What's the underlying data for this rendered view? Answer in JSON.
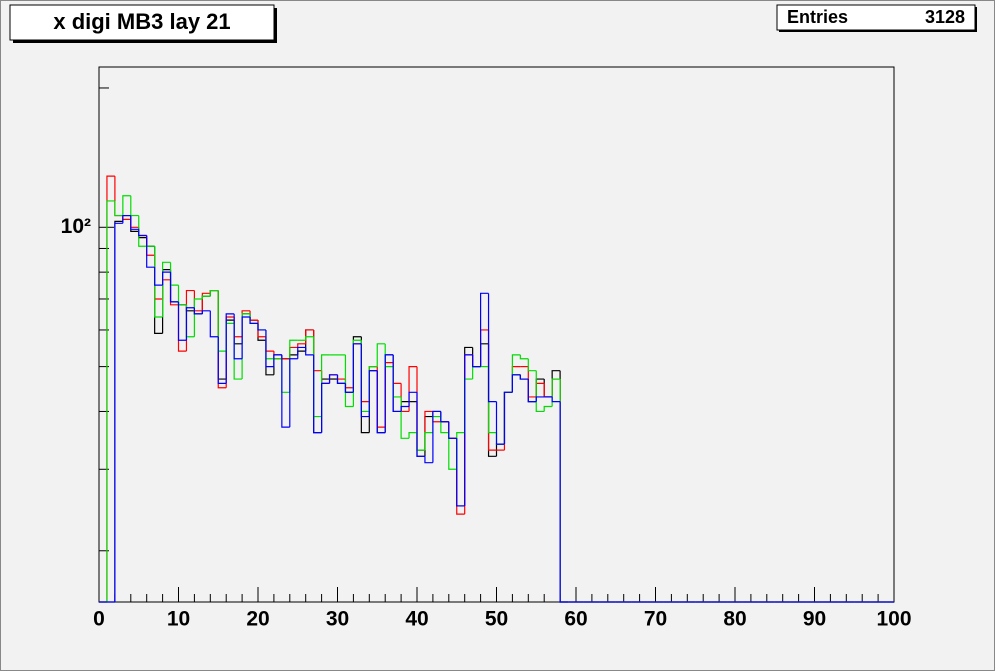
{
  "chart_data": {
    "type": "histogram",
    "title": "x digi MB3 lay 21",
    "stats": {
      "label": "Entries",
      "value": "3128"
    },
    "log_y": true,
    "xlim": [
      0,
      100
    ],
    "xticks": [
      0,
      10,
      20,
      30,
      40,
      50,
      60,
      70,
      80,
      90,
      100
    ],
    "x_subdivisions": 5,
    "ylim": [
      15.5,
      222
    ],
    "yticks": [
      {
        "value": 100,
        "label": "10²"
      }
    ],
    "yminor": [
      20,
      30,
      40,
      50,
      60,
      70,
      80,
      90,
      200
    ],
    "bins": [
      0,
      1,
      2,
      3,
      4,
      5,
      6,
      7,
      8,
      9,
      10,
      11,
      12,
      13,
      14,
      15,
      16,
      17,
      18,
      19,
      20,
      21,
      22,
      23,
      24,
      25,
      26,
      27,
      28,
      29,
      30,
      31,
      32,
      33,
      34,
      35,
      36,
      37,
      38,
      39,
      40,
      41,
      42,
      43,
      44,
      45,
      46,
      47,
      48,
      49,
      50,
      51,
      52,
      53,
      54,
      55,
      56,
      57,
      58,
      59,
      60,
      61,
      62,
      63,
      64,
      65,
      66,
      67,
      68,
      69,
      70,
      71,
      72,
      73,
      74,
      75,
      76,
      77,
      78,
      79,
      80,
      81,
      82,
      83,
      84,
      85,
      86,
      87,
      88,
      89,
      90,
      91,
      92,
      93,
      94,
      95,
      96,
      97,
      98,
      99,
      100
    ],
    "series": [
      {
        "color": "#000000",
        "values": [
          0,
          0,
          103,
          106,
          98,
          95,
          91,
          59,
          81,
          69,
          68,
          66,
          65,
          71,
          73,
          47,
          63,
          56,
          65,
          63,
          57,
          48,
          53,
          52,
          53,
          54,
          60,
          36,
          47,
          47,
          46,
          44,
          58,
          36,
          49,
          36,
          53,
          40,
          42,
          42,
          32,
          39,
          40,
          38,
          35,
          25,
          55,
          50,
          56,
          32,
          34,
          44,
          48,
          47,
          42,
          47,
          43,
          49,
          0,
          0,
          0,
          0,
          0,
          0,
          0,
          0,
          0,
          0,
          0,
          0,
          0,
          0,
          0,
          0,
          0,
          0,
          0,
          0,
          0,
          0,
          0,
          0,
          0,
          0,
          0,
          0,
          0,
          0,
          0,
          0,
          0,
          0,
          0,
          0,
          0,
          0,
          0,
          0,
          0,
          0,
          0,
          0
        ]
      },
      {
        "color": "#ff0000",
        "values": [
          0,
          129,
          106,
          104,
          100,
          96,
          87,
          70,
          77,
          68,
          54,
          73,
          66,
          72,
          73,
          45,
          64,
          58,
          66,
          63,
          58,
          54,
          52,
          52,
          55,
          56,
          60,
          49,
          46,
          48,
          47,
          45,
          56,
          42,
          50,
          37,
          51,
          46,
          40,
          50,
          33,
          40,
          38,
          38,
          35,
          24,
          53,
          50,
          60,
          33,
          33,
          44,
          50,
          50,
          43,
          46,
          43,
          47,
          0,
          0,
          0,
          0,
          0,
          0,
          0,
          0,
          0,
          0,
          0,
          0,
          0,
          0,
          0,
          0,
          0,
          0,
          0,
          0,
          0,
          0,
          0,
          0,
          0,
          0,
          0,
          0,
          0,
          0,
          0,
          0,
          0,
          0,
          0,
          0,
          0,
          0,
          0,
          0,
          0,
          0,
          0,
          0
        ]
      },
      {
        "color": "#00dd00",
        "values": [
          0,
          114,
          106,
          117,
          106,
          91,
          91,
          64,
          84,
          75,
          68,
          58,
          70,
          71,
          73,
          54,
          62,
          47,
          65,
          62,
          60,
          52,
          52,
          44,
          57,
          57,
          58,
          39,
          53,
          53,
          53,
          41,
          57,
          40,
          50,
          56,
          50,
          43,
          35,
          36,
          33,
          36,
          39,
          36,
          30,
          36,
          47,
          50,
          50,
          36,
          34,
          44,
          53,
          52,
          49,
          40,
          41,
          47,
          0,
          0,
          0,
          0,
          0,
          0,
          0,
          0,
          0,
          0,
          0,
          0,
          0,
          0,
          0,
          0,
          0,
          0,
          0,
          0,
          0,
          0,
          0,
          0,
          0,
          0,
          0,
          0,
          0,
          0,
          0,
          0,
          0,
          0,
          0,
          0,
          0,
          0,
          0,
          0,
          0,
          0,
          0,
          0
        ]
      },
      {
        "color": "#0000ff",
        "values": [
          0,
          0,
          102,
          106,
          99,
          96,
          82,
          75,
          80,
          69,
          57,
          67,
          65,
          66,
          58,
          46,
          65,
          52,
          64,
          62,
          60,
          50,
          53,
          37,
          52,
          55,
          53,
          36,
          46,
          48,
          46,
          44,
          56,
          39,
          49,
          36,
          53,
          40,
          41,
          44,
          32,
          31,
          40,
          38,
          35,
          25,
          53,
          50,
          72,
          42,
          34,
          44,
          48,
          47,
          42,
          43,
          43,
          42,
          0,
          0,
          0,
          0,
          0,
          0,
          0,
          0,
          0,
          0,
          0,
          0,
          0,
          0,
          0,
          0,
          0,
          0,
          0,
          0,
          0,
          0,
          0,
          0,
          0,
          0,
          0,
          0,
          0,
          0,
          0,
          0,
          0,
          0,
          0,
          0,
          0,
          0,
          0,
          0,
          0,
          0,
          0,
          0
        ]
      }
    ]
  }
}
